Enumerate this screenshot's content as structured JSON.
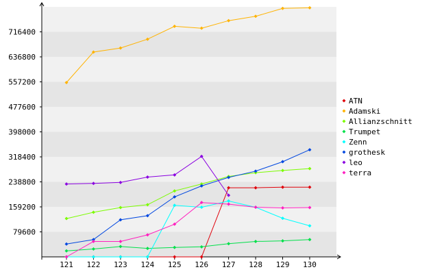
{
  "chart_data": {
    "type": "line",
    "title": "",
    "xlabel": "",
    "ylabel": "",
    "categories": [
      "121",
      "122",
      "123",
      "124",
      "125",
      "126",
      "127",
      "128",
      "129",
      "130"
    ],
    "y_ticks": [
      "79600",
      "159200",
      "238800",
      "318400",
      "398000",
      "477600",
      "557200",
      "636800",
      "716400"
    ],
    "ylim": [
      0,
      796000
    ],
    "grid": "horizontal bands",
    "legend_position": "right",
    "series": [
      {
        "name": "ATN",
        "color": "#e0000a",
        "values": [
          0,
          0,
          0,
          0,
          0,
          0,
          220000,
          220000,
          222000,
          222000
        ]
      },
      {
        "name": "Adamski",
        "color": "#ffb300",
        "values": [
          555000,
          652000,
          665000,
          693000,
          734000,
          728000,
          752000,
          766000,
          791000,
          793000
        ]
      },
      {
        "name": "Allianzschnitt",
        "color": "#7cfc00",
        "values": [
          122000,
          142000,
          157000,
          166000,
          210000,
          232000,
          256000,
          268000,
          275000,
          281000
        ]
      },
      {
        "name": "Trumpet",
        "color": "#00e04a",
        "values": [
          19000,
          25000,
          33000,
          27000,
          30000,
          32000,
          42000,
          49000,
          51000,
          55000
        ]
      },
      {
        "name": "Zenn",
        "color": "#00ffff",
        "values": [
          0,
          0,
          0,
          0,
          164000,
          158000,
          178000,
          158000,
          123000,
          99000
        ]
      },
      {
        "name": "grothesk",
        "color": "#0047e0",
        "values": [
          41000,
          55000,
          118000,
          131000,
          191000,
          226000,
          253000,
          273000,
          303000,
          341000
        ]
      },
      {
        "name": "leo",
        "color": "#8a00e0",
        "values": [
          232000,
          234000,
          237000,
          254000,
          261000,
          320000,
          196000,
          null,
          null,
          null
        ]
      },
      {
        "name": "terra",
        "color": "#ff1fbf",
        "values": [
          0,
          49000,
          49000,
          70000,
          104000,
          173000,
          168000,
          158000,
          156000,
          157000
        ]
      }
    ]
  }
}
